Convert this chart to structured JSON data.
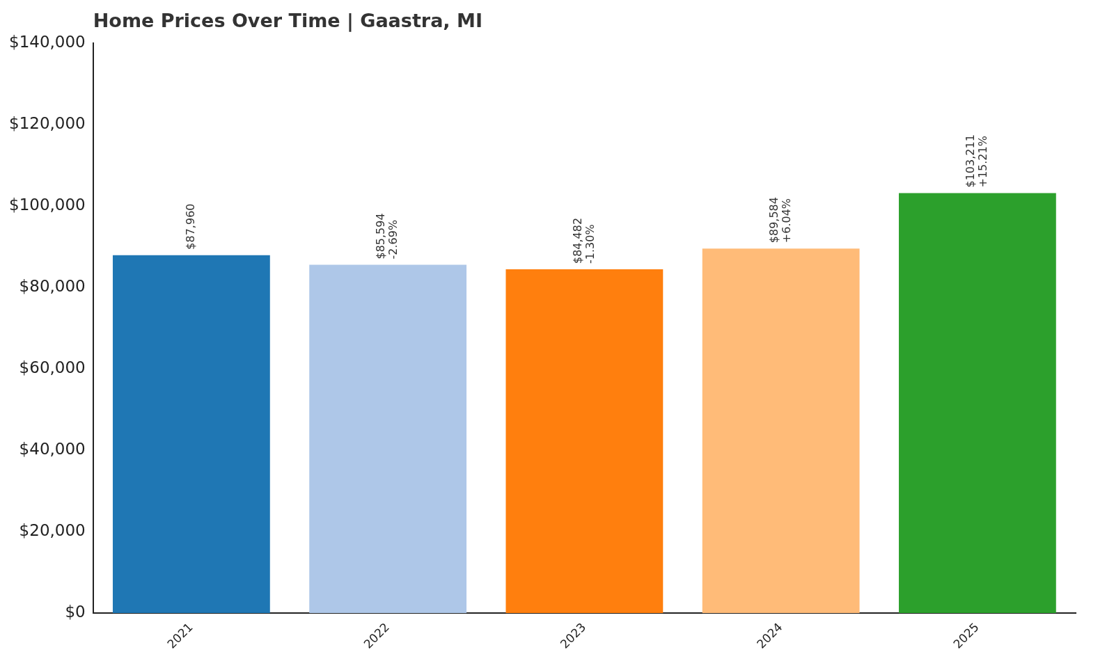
{
  "chart_data": {
    "type": "bar",
    "title": "Home Prices Over Time | Gaastra, MI",
    "categories": [
      "2021",
      "2022",
      "2023",
      "2024",
      "2025"
    ],
    "values": [
      87960,
      85594,
      84482,
      89584,
      103211
    ],
    "colors": [
      "#1f77b4",
      "#aec7e8",
      "#ff7f0e",
      "#ffbb78",
      "#2ca02c"
    ],
    "value_labels": [
      "$87,960",
      "$85,594\n-2.69%",
      "$84,482\n-1.30%",
      "$89,584\n+6.04%",
      "$103,211\n+15.21%"
    ],
    "ylim": [
      0,
      140000
    ],
    "yticks": [
      {
        "value": 0,
        "label": "$0"
      },
      {
        "value": 20000,
        "label": "$20,000"
      },
      {
        "value": 40000,
        "label": "$40,000"
      },
      {
        "value": 60000,
        "label": "$60,000"
      },
      {
        "value": 80000,
        "label": "$80,000"
      },
      {
        "value": 100000,
        "label": "$100,000"
      },
      {
        "value": 120000,
        "label": "$120,000"
      },
      {
        "value": 140000,
        "label": "$140,000"
      }
    ],
    "grid": false,
    "legend": false
  }
}
